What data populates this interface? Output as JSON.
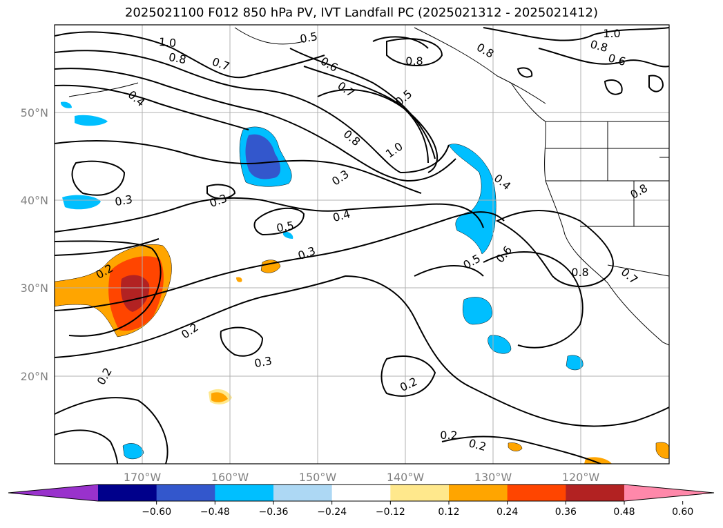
{
  "title": "2025021100 F012 850 hPa PV, IVT Landfall PC (2025021312 - 2025021412)",
  "lat_ticks": [
    "50°N",
    "40°N",
    "30°N",
    "20°N"
  ],
  "lon_ticks": [
    "170°W",
    "160°W",
    "150°W",
    "140°W",
    "130°W",
    "120°W"
  ],
  "contour_labels": [
    "1.0",
    "0.8",
    "0.7",
    "0.5",
    "0.6",
    "0.4",
    "0.7",
    "0.5",
    "0.8",
    "1.0",
    "0.8",
    "1.0",
    "0.8",
    "0.6",
    "0.8",
    "0.3",
    "0.3",
    "0.3",
    "0.5",
    "0.4",
    "0.3",
    "0.4",
    "0.5",
    "0.6",
    "0.8",
    "0.7",
    "0.8",
    "0.2",
    "0.2",
    "0.3",
    "0.2",
    "0.2",
    "0.2",
    "0.2"
  ],
  "colorbar": {
    "colors": [
      "#9932cc",
      "#00008b",
      "#3357cc",
      "#00bfff",
      "#add8f4",
      "#ffffff",
      "#ffe88c",
      "#ffa500",
      "#ff4500",
      "#b22222",
      "#ff88aa"
    ],
    "tick_labels": [
      "−0.60",
      "−0.48",
      "−0.36",
      "−0.24",
      "−0.12",
      "0.12",
      "0.24",
      "0.36",
      "0.48",
      "0.60"
    ]
  }
}
